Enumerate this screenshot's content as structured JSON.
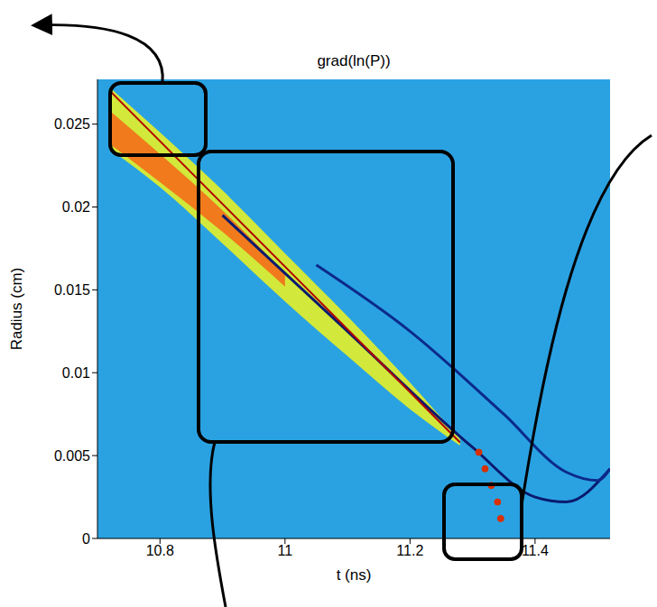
{
  "chart_data": {
    "type": "line",
    "title": "grad(ln(P))",
    "x_label": "t (ns)",
    "y_label": "Radius (cm)",
    "xlim": [
      10.7,
      11.52
    ],
    "ylim": [
      0,
      0.0277
    ],
    "xticks": [
      10.8,
      11,
      11.2,
      11.4
    ],
    "yticks": [
      0,
      0.005,
      0.01,
      0.015,
      0.02,
      0.025
    ],
    "grid": false,
    "series": [
      {
        "type": "area",
        "color": "#d2e83a",
        "x": [
          10.72,
          10.8,
          10.9,
          11.0,
          11.1,
          11.2,
          11.28
        ],
        "values": [
          [
            0.0235,
            0.0272
          ],
          [
            0.0212,
            0.0245
          ],
          [
            0.0178,
            0.021
          ],
          [
            0.0143,
            0.0172
          ],
          [
            0.011,
            0.0134
          ],
          [
            0.0078,
            0.0094
          ],
          [
            0.0056,
            0.006
          ]
        ]
      },
      {
        "type": "area",
        "color": "#f07a1c",
        "x": [
          10.72,
          10.8,
          10.9,
          11.0
        ],
        "values": [
          [
            0.0238,
            0.0258
          ],
          [
            0.0215,
            0.0232
          ],
          [
            0.0185,
            0.0198
          ],
          [
            0.0152,
            0.016
          ]
        ]
      },
      {
        "type": "line",
        "color": "#0a1a6e",
        "x": [
          10.9,
          11.1,
          11.3,
          11.4,
          11.45,
          11.52
        ],
        "values": [
          0.0195,
          0.0125,
          0.0055,
          0.0025,
          0.0022,
          0.0042
        ]
      },
      {
        "type": "line",
        "color": "#0c2a8a",
        "x": [
          11.05,
          11.2,
          11.35,
          11.45,
          11.5,
          11.52
        ],
        "values": [
          0.0165,
          0.0125,
          0.0075,
          0.004,
          0.0035,
          0.0042
        ]
      },
      {
        "type": "line",
        "color": "#b00000",
        "x": [
          10.72,
          11.0,
          11.28
        ],
        "values": [
          0.027,
          0.0164,
          0.0058
        ]
      },
      {
        "type": "scatter",
        "marker": "o",
        "color": "#d83000",
        "x": [
          11.31,
          11.32,
          11.33,
          11.34,
          11.345
        ],
        "values": [
          0.0052,
          0.0042,
          0.0032,
          0.0022,
          0.0012
        ]
      }
    ]
  }
}
